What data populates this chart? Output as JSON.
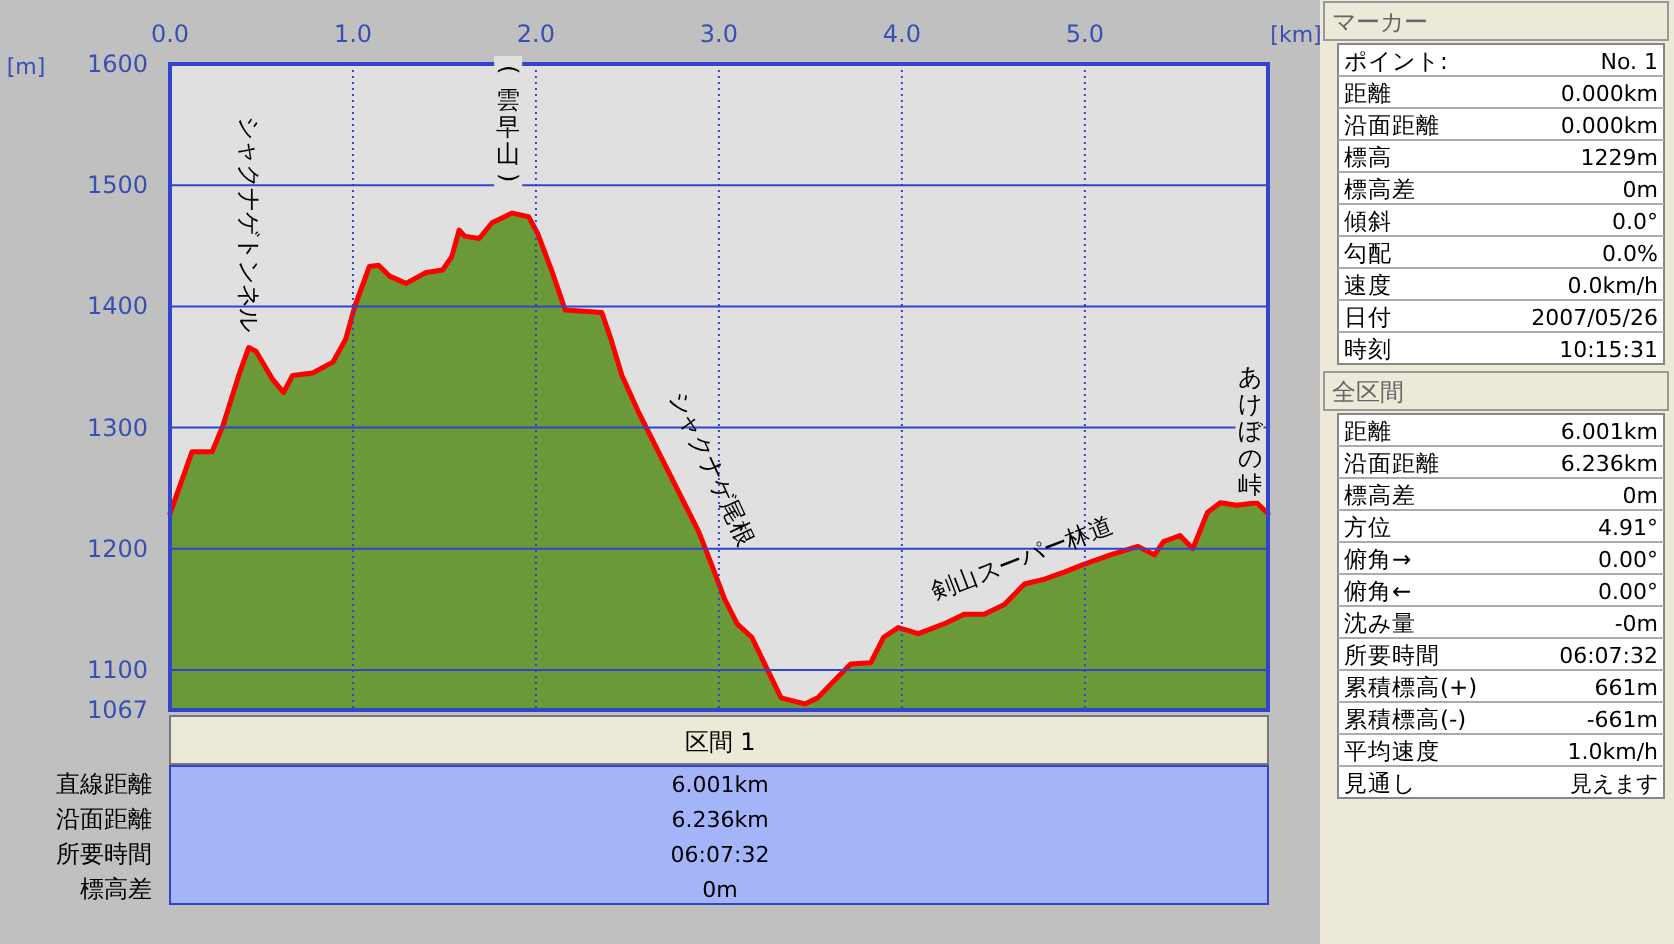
{
  "chart_data": [
    {
      "type": "area",
      "xlabel": "[km]",
      "ylabel": "[m]",
      "xlim": [
        0,
        6.001
      ],
      "ylim": [
        1067,
        1600
      ],
      "xticks": [
        {
          "value": 0,
          "label": "0.0"
        },
        {
          "value": 1,
          "label": "1.0"
        },
        {
          "value": 2,
          "label": "2.0"
        },
        {
          "value": 3,
          "label": "3.0"
        },
        {
          "value": 4,
          "label": "4.0"
        },
        {
          "value": 5,
          "label": "5.0"
        }
      ],
      "yticks": [
        1067,
        1100,
        1200,
        1300,
        1400,
        1500,
        1600
      ],
      "grid": true,
      "x": [
        0,
        0.12,
        0.23,
        0.29,
        0.38,
        0.43,
        0.47,
        0.56,
        0.62,
        0.67,
        0.78,
        0.89,
        0.96,
        1.01,
        1.09,
        1.14,
        1.2,
        1.29,
        1.4,
        1.49,
        1.54,
        1.58,
        1.61,
        1.69,
        1.76,
        1.87,
        1.96,
        2.01,
        2.09,
        2.16,
        2.36,
        2.41,
        2.47,
        2.56,
        2.67,
        2.78,
        2.89,
        2.96,
        3.03,
        3.1,
        3.18,
        3.25,
        3.34,
        3.47,
        3.54,
        3.61,
        3.72,
        3.83,
        3.9,
        3.98,
        4.09,
        4.23,
        4.34,
        4.45,
        4.56,
        4.67,
        4.78,
        4.89,
        4.99,
        5.14,
        5.29,
        5.38,
        5.43,
        5.52,
        5.59,
        5.67,
        5.74,
        5.83,
        5.94,
        5.98,
        6.001
      ],
      "series": [
        {
          "type": "area",
          "color": "#6a9a38",
          "values": [
            1229,
            1280,
            1280,
            1302,
            1345,
            1366,
            1363,
            1340,
            1329,
            1343,
            1345,
            1354,
            1373,
            1400,
            1433,
            1434,
            1425,
            1419,
            1428,
            1430,
            1441,
            1463,
            1458,
            1456,
            1469,
            1477,
            1474,
            1460,
            1428,
            1397,
            1395,
            1373,
            1343,
            1313,
            1280,
            1247,
            1214,
            1187,
            1159,
            1138,
            1127,
            1105,
            1077,
            1072,
            1077,
            1088,
            1105,
            1106,
            1127,
            1135,
            1130,
            1138,
            1146,
            1146,
            1154,
            1171,
            1175,
            1181,
            1187,
            1195,
            1202,
            1195,
            1206,
            1211,
            1200,
            1230,
            1238,
            1236,
            1238,
            1232,
            1229
          ]
        },
        {
          "type": "line",
          "color": "#ff0000",
          "values": [
            1229,
            1280,
            1280,
            1302,
            1345,
            1366,
            1363,
            1340,
            1329,
            1343,
            1345,
            1354,
            1373,
            1400,
            1433,
            1434,
            1425,
            1419,
            1428,
            1430,
            1441,
            1463,
            1458,
            1456,
            1469,
            1477,
            1474,
            1460,
            1428,
            1397,
            1395,
            1373,
            1343,
            1313,
            1280,
            1247,
            1214,
            1187,
            1159,
            1138,
            1127,
            1105,
            1077,
            1072,
            1077,
            1088,
            1105,
            1106,
            1127,
            1135,
            1130,
            1138,
            1146,
            1146,
            1154,
            1171,
            1175,
            1181,
            1187,
            1195,
            1202,
            1195,
            1206,
            1211,
            1200,
            1230,
            1238,
            1236,
            1238,
            1232,
            1229
          ]
        }
      ],
      "annotations": [
        {
          "text": "シャクナゲトンネル",
          "x": 0.43,
          "y": 1366
        },
        {
          "text": "(雲早山)",
          "x": 1.87,
          "y": 1477
        },
        {
          "text": "シャクナゲ尾根",
          "x": 2.78,
          "y": 1247
        },
        {
          "text": "剣山スーパー林道",
          "x": 4.67,
          "y": 1171
        },
        {
          "text": "あけぼの峠",
          "x": 5.9,
          "y": 1238
        }
      ]
    },
    {
      "type": "other",
      "title": "区間 1",
      "annotations": [
        "直線距離",
        "6.001km",
        "沿面距離",
        "6.236km",
        "所要時間",
        "06:07:32",
        "標高差",
        "0m"
      ]
    },
    {
      "type": "other",
      "title": "マーカー",
      "annotations": [
        "ポイント:",
        "No. 1",
        "距離",
        "0.000km",
        "沿面距離",
        "0.000km",
        "標高",
        "1229m",
        "標高差",
        "0m",
        "傾斜",
        "0.0°",
        "勾配",
        "0.0%",
        "速度",
        "0.0km/h",
        "日付",
        "2007/05/26",
        "時刻",
        "10:15:31"
      ]
    },
    {
      "type": "other",
      "title": "全区間",
      "annotations": [
        "距離",
        "6.001km",
        "沿面距離",
        "6.236km",
        "標高差",
        "0m",
        "方位",
        "4.91°",
        "俯角→",
        "0.00°",
        "俯角←",
        "0.00°",
        "沈み量",
        "-0m",
        "所要時間",
        "06:07:32",
        "累積標高(+)",
        "661m",
        "累積標高(-)",
        "-661m",
        "平均速度",
        "1.0km/h",
        "見通し",
        "見えます"
      ]
    }
  ]
}
